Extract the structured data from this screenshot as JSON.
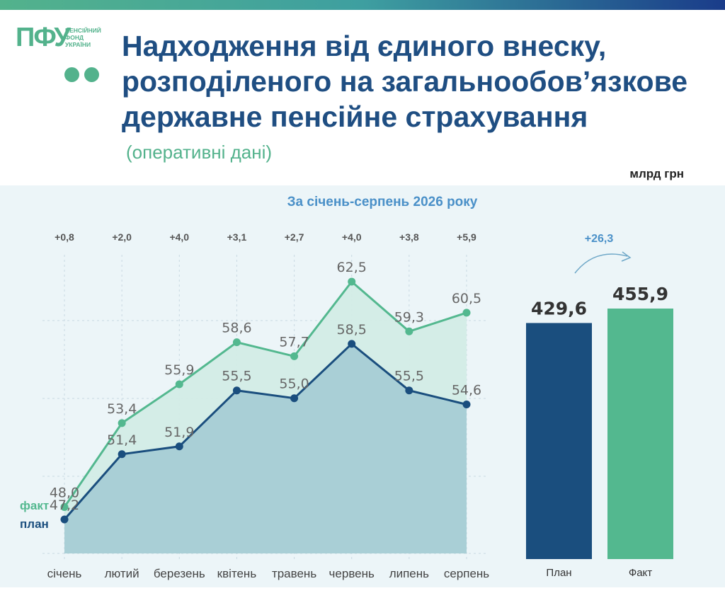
{
  "logo": {
    "mark": "ПФУ",
    "lines": [
      "ПЕНСІЙНИЙ",
      "ФОНД",
      "УКРАЇНИ"
    ]
  },
  "title_lines": [
    "Надходження від єдиного внеску,",
    "розподіленого на загальнообов’язкове",
    "державне пенсійне страхування"
  ],
  "subtitle": "(оперативні дані)",
  "unit": "млрд грн",
  "colors": {
    "plan": "#1a4e7e",
    "fact": "#53b88f",
    "title": "#1f4e82",
    "period": "#4a90c8"
  },
  "chart_data": [
    {
      "type": "line",
      "title": "За січень-серпень 2026 року",
      "categories": [
        "січень",
        "лютий",
        "березень",
        "квітень",
        "травень",
        "червень",
        "липень",
        "серпень"
      ],
      "series": [
        {
          "name": "факт",
          "values": [
            48.0,
            53.4,
            55.9,
            58.6,
            57.7,
            62.5,
            59.3,
            60.5
          ]
        },
        {
          "name": "план",
          "values": [
            47.2,
            51.4,
            51.9,
            55.5,
            55.0,
            58.5,
            55.5,
            54.6
          ]
        }
      ],
      "value_labels": {
        "факт": [
          "48,0",
          "53,4",
          "55,9",
          "58,6",
          "57,7",
          "62,5",
          "59,3",
          "60,5"
        ],
        "план": [
          "47,2",
          "51,4",
          "51,9",
          "55,5",
          "55,0",
          "58,5",
          "55,5",
          "54,6"
        ]
      },
      "differences": [
        "+0,8",
        "+2,0",
        "+4,0",
        "+3,1",
        "+2,7",
        "+4,0",
        "+3,8",
        "+5,9"
      ],
      "ylim": [
        44,
        66
      ],
      "grid": true
    },
    {
      "type": "bar",
      "categories": [
        "План",
        "Факт"
      ],
      "values": [
        429.6,
        455.9
      ],
      "value_labels": [
        "429,6",
        "455,9"
      ],
      "difference": "+26,3",
      "ylim": [
        0,
        480
      ]
    }
  ]
}
